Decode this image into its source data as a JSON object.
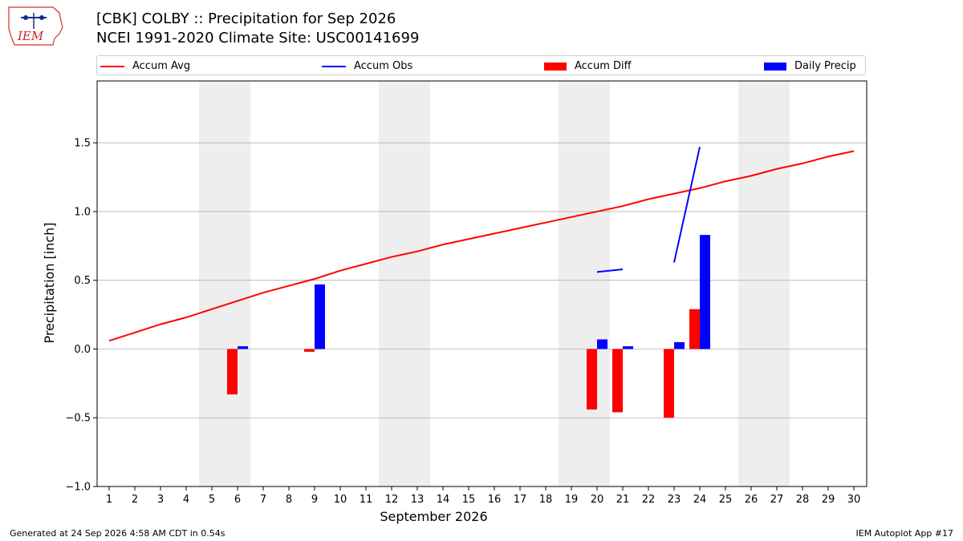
{
  "header": {
    "logo_text": "IEM",
    "title_line1": "[CBK] COLBY :: Precipitation for Sep 2026",
    "title_line2": "NCEI 1991-2020 Climate Site: USC00141699"
  },
  "legend": [
    {
      "label": "Accum Avg",
      "color": "#ff0000",
      "kind": "line"
    },
    {
      "label": "Accum Obs",
      "color": "#0000ff",
      "kind": "line"
    },
    {
      "label": "Accum Diff",
      "color": "#ff0000",
      "kind": "patch"
    },
    {
      "label": "Daily Precip",
      "color": "#0000ff",
      "kind": "patch"
    }
  ],
  "footer": {
    "left": "Generated at 24 Sep 2026 4:58 AM CDT in 0.54s",
    "right": "IEM Autoplot App #17"
  },
  "chart_data": {
    "type": "bar",
    "xlabel": "September 2026",
    "ylabel": "Precipitation [inch]",
    "x": [
      1,
      2,
      3,
      4,
      5,
      6,
      7,
      8,
      9,
      10,
      11,
      12,
      13,
      14,
      15,
      16,
      17,
      18,
      19,
      20,
      21,
      22,
      23,
      24,
      25,
      26,
      27,
      28,
      29,
      30
    ],
    "ylim": [
      -1.0,
      1.95
    ],
    "yticks": [
      -1.0,
      -0.5,
      0.0,
      0.5,
      1.0,
      1.5
    ],
    "ytick_labels": [
      "−1.0",
      "−0.5",
      "0.0",
      "0.5",
      "1.0",
      "1.5"
    ],
    "grid": true,
    "weekend_shading": [
      [
        5,
        6
      ],
      [
        12,
        13
      ],
      [
        19,
        20
      ],
      [
        26,
        27
      ]
    ],
    "series": [
      {
        "name": "Accum Avg",
        "type": "line",
        "color": "#ff0000",
        "values": [
          0.06,
          0.12,
          0.18,
          0.23,
          0.29,
          0.35,
          0.41,
          0.46,
          0.51,
          0.57,
          0.62,
          0.67,
          0.71,
          0.76,
          0.8,
          0.84,
          0.88,
          0.92,
          0.96,
          1.0,
          1.04,
          1.09,
          1.13,
          1.17,
          1.22,
          1.26,
          1.31,
          1.35,
          1.4,
          1.44
        ]
      },
      {
        "name": "Accum Obs",
        "type": "line",
        "color": "#0000ff",
        "values": [
          null,
          null,
          null,
          null,
          null,
          null,
          null,
          null,
          null,
          null,
          null,
          null,
          null,
          null,
          null,
          null,
          null,
          null,
          null,
          0.56,
          0.58,
          null,
          0.63,
          1.47,
          null,
          null,
          null,
          null,
          null,
          null
        ]
      },
      {
        "name": "Accum Diff",
        "type": "bar",
        "color": "#ff0000",
        "values": [
          null,
          null,
          null,
          null,
          null,
          -0.33,
          null,
          null,
          -0.02,
          null,
          null,
          null,
          null,
          null,
          null,
          null,
          null,
          null,
          null,
          -0.44,
          -0.46,
          null,
          -0.5,
          0.29,
          null,
          null,
          null,
          null,
          null,
          null
        ]
      },
      {
        "name": "Daily Precip",
        "type": "bar",
        "color": "#0000ff",
        "values": [
          null,
          null,
          null,
          null,
          null,
          0.02,
          null,
          null,
          0.47,
          null,
          null,
          null,
          null,
          null,
          null,
          null,
          null,
          null,
          null,
          0.07,
          0.02,
          null,
          0.05,
          0.83,
          null,
          null,
          null,
          null,
          null,
          null
        ]
      }
    ]
  }
}
